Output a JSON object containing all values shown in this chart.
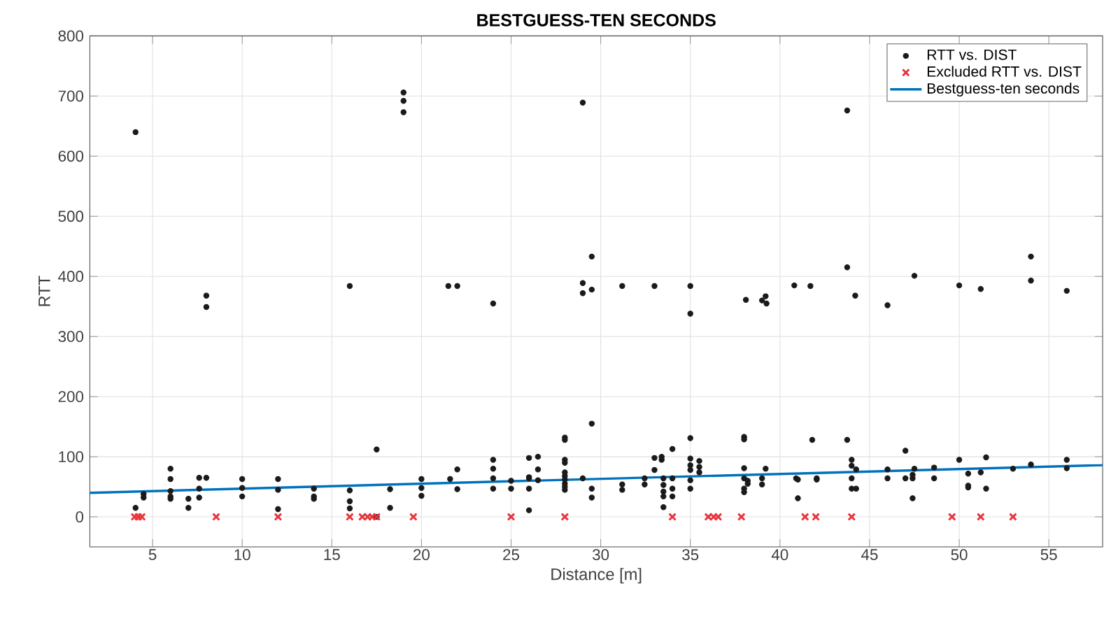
{
  "chart_data": {
    "type": "scatter",
    "title": "BESTGUESS-TEN SECONDS",
    "xlabel": "Distance [m]",
    "ylabel": "RTT",
    "xlim": [
      1.5,
      58
    ],
    "ylim": [
      -50,
      800
    ],
    "xticks": [
      5,
      10,
      15,
      20,
      25,
      30,
      35,
      40,
      45,
      50,
      55
    ],
    "yticks": [
      0,
      100,
      200,
      300,
      400,
      500,
      600,
      700,
      800
    ],
    "grid": true,
    "legend": "top right",
    "series": [
      {
        "name": "RTT vs. DIST",
        "color": "#1a1a1a",
        "type": "scatter",
        "marker": "circle",
        "x": [
          4.05,
          4.05,
          4.5,
          4.5,
          6,
          6,
          6,
          6,
          6,
          7,
          7,
          7.6,
          7.6,
          7.6,
          8,
          8,
          8,
          10,
          10,
          10,
          12,
          12,
          12,
          14,
          14,
          14,
          16,
          16,
          16,
          16,
          17.5,
          17.5,
          18.25,
          18.25,
          19,
          19,
          19,
          20,
          20,
          20,
          21.5,
          21.6,
          22,
          22,
          22,
          24,
          24,
          24,
          24,
          24,
          25,
          25,
          26,
          26,
          26,
          26,
          26,
          26.5,
          26.5,
          26.5,
          28,
          28,
          28,
          28,
          28,
          28,
          28,
          28,
          28,
          28,
          29,
          29,
          29,
          29,
          29.5,
          29.5,
          29.5,
          29.5,
          29.5,
          31.2,
          31.2,
          31.2,
          32.45,
          32.45,
          33,
          33,
          33,
          33.4,
          33.4,
          33.5,
          33.5,
          33.5,
          33.5,
          33.5,
          34,
          34,
          34,
          34,
          35,
          35,
          35,
          35,
          35,
          35,
          35,
          35,
          35.5,
          35.5,
          35.5,
          38,
          38,
          38,
          38,
          38,
          38,
          38.1,
          38.2,
          38.2,
          39,
          39,
          39,
          39.2,
          39.2,
          39.25,
          40.8,
          40.9,
          41,
          41,
          41.7,
          41.8,
          42.05,
          42.05,
          43.75,
          43.75,
          43.75,
          44,
          44,
          44,
          44,
          44.2,
          44.25,
          44.25,
          46,
          46,
          46,
          47,
          47,
          47.4,
          47.4,
          47.4,
          47.5,
          47.5,
          48.6,
          48.6,
          50,
          50,
          50.5,
          50.5,
          50.5,
          51.2,
          51.2,
          51.5,
          51.5,
          53,
          54,
          54,
          54,
          56,
          56,
          56
        ],
        "values": [
          15,
          640,
          38,
          32,
          80,
          63,
          43,
          34,
          30,
          30,
          15,
          65,
          47,
          32,
          65,
          368,
          349,
          63,
          48,
          34,
          63,
          45,
          13,
          47,
          34,
          30,
          44,
          26,
          14,
          384,
          112,
          0,
          46,
          15,
          706,
          692,
          673,
          63,
          48,
          35,
          384,
          63,
          79,
          46,
          384,
          95,
          80,
          64,
          47,
          355,
          60,
          47,
          98,
          66,
          64,
          47,
          11,
          100,
          79,
          61,
          132,
          128,
          95,
          90,
          74,
          68,
          62,
          55,
          50,
          45,
          64,
          689,
          389,
          372,
          155,
          47,
          32,
          433,
          378,
          54,
          45,
          384,
          64,
          54,
          98,
          78,
          384,
          100,
          95,
          64,
          53,
          42,
          34,
          16,
          113,
          64,
          47,
          34,
          131,
          97,
          86,
          78,
          61,
          47,
          384,
          338,
          93,
          83,
          74,
          133,
          129,
          81,
          64,
          47,
          41,
          361,
          60,
          55,
          64,
          54,
          360,
          80,
          367,
          355,
          385,
          64,
          62,
          31,
          384,
          128,
          64,
          62,
          128,
          676,
          415,
          95,
          85,
          64,
          47,
          368,
          47,
          79,
          79,
          64,
          352,
          110,
          64,
          70,
          64,
          31,
          80,
          401,
          82,
          64,
          95,
          385,
          72,
          52,
          49,
          74,
          379,
          99,
          47,
          80,
          87,
          433,
          393,
          95,
          81,
          376
        ]
      },
      {
        "name": "Excluded RTT vs. DIST",
        "color": "#e8333b",
        "type": "scatter",
        "marker": "cross",
        "x": [
          4.0,
          4.2,
          4.4,
          8.55,
          12,
          16,
          16.7,
          17,
          17.25,
          17.5,
          19.55,
          25,
          28,
          34,
          36,
          36.3,
          36.55,
          37.85,
          41.4,
          42,
          44,
          49.6,
          51.2,
          53
        ],
        "values": [
          0,
          0,
          0,
          0,
          0,
          0,
          0,
          0,
          0,
          0,
          0,
          0,
          0,
          0,
          0,
          0,
          0,
          0,
          0,
          0,
          0,
          0,
          0,
          0
        ]
      },
      {
        "name": "Bestguess-ten seconds",
        "color": "#0072bd",
        "type": "line",
        "marker": "none",
        "x": [
          1.5,
          58
        ],
        "values": [
          40,
          86
        ]
      }
    ]
  }
}
